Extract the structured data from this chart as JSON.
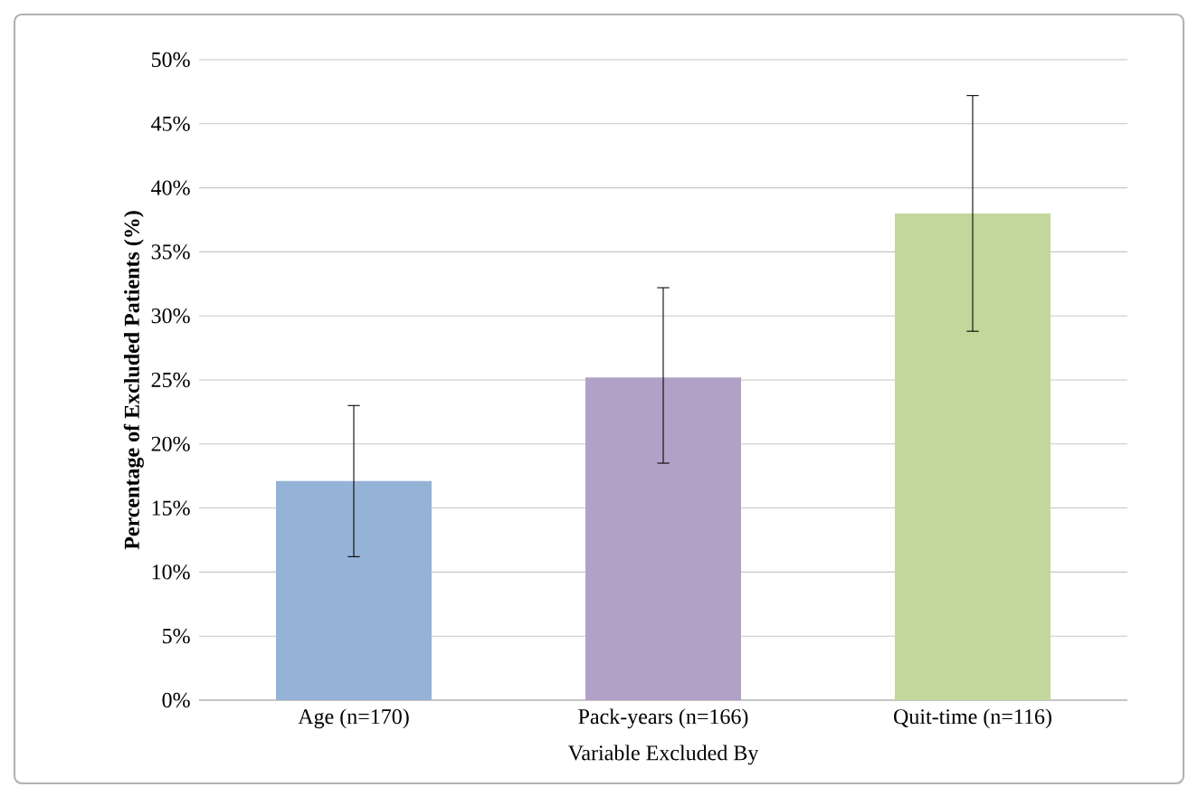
{
  "chart_data": {
    "type": "bar",
    "ylabel": "Percentage of Excluded Patients (%)",
    "xlabel": "Variable Excluded By",
    "categories": [
      "Age (n=170)",
      "Pack-years (n=166)",
      "Quit-time (n=116)"
    ],
    "values": [
      17.1,
      25.2,
      38.0
    ],
    "colors": [
      "#95b3d7",
      "#b2a1c7",
      "#c3d69b"
    ],
    "errors": [
      [
        11.2,
        23.0
      ],
      [
        18.5,
        32.2
      ],
      [
        28.8,
        47.2
      ]
    ],
    "ylim": [
      0,
      50
    ],
    "yticks": [
      {
        "value": 0,
        "label": "0%"
      },
      {
        "value": 5,
        "label": "5%"
      },
      {
        "value": 10,
        "label": "10%"
      },
      {
        "value": 15,
        "label": "15%"
      },
      {
        "value": 20,
        "label": "20%"
      },
      {
        "value": 25,
        "label": "25%"
      },
      {
        "value": 30,
        "label": "30%"
      },
      {
        "value": 35,
        "label": "35%"
      },
      {
        "value": 40,
        "label": "40%"
      },
      {
        "value": 45,
        "label": "45%"
      },
      {
        "value": 50,
        "label": "50%"
      }
    ],
    "grid": "y"
  }
}
